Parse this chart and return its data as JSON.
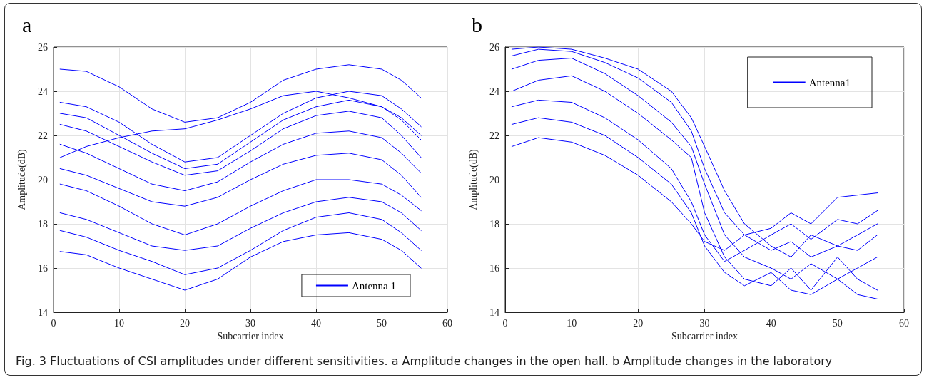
{
  "chart_data": [
    {
      "type": "line",
      "title": "a",
      "xlabel": "Subcarrier index",
      "ylabel": "Amplitude(dB)",
      "x": [
        1,
        5,
        10,
        15,
        20,
        25,
        30,
        35,
        40,
        45,
        50,
        53,
        56
      ],
      "xlim": [
        0,
        60
      ],
      "xticks": [
        0,
        10,
        20,
        30,
        40,
        50,
        60
      ],
      "ylim": [
        14,
        26
      ],
      "yticks": [
        14,
        16,
        18,
        20,
        22,
        24,
        26
      ],
      "grid": true,
      "legend": "bottom right",
      "line_style": "solid",
      "annotations": [
        "Fig. 3 Fluctuations of CSI amplitudes under different sensitivities. a Amplitude changes in the open hall. b Amplitude changes in the laboratory"
      ],
      "series": [
        {
          "name": "Antenna 1",
          "color": "#0000ff",
          "values": [
            25.0,
            24.9,
            24.2,
            23.2,
            22.6,
            22.8,
            23.5,
            24.5,
            25.0,
            25.2,
            25.0,
            24.5,
            23.7
          ]
        },
        {
          "color": "#0000ff",
          "values": [
            23.5,
            23.3,
            22.6,
            21.6,
            20.8,
            21.0,
            22.0,
            23.0,
            23.7,
            24.0,
            23.8,
            23.2,
            22.4
          ]
        },
        {
          "color": "#0000ff",
          "values": [
            23.0,
            22.8,
            22.0,
            21.2,
            20.5,
            20.7,
            21.7,
            22.7,
            23.3,
            23.6,
            23.3,
            22.7,
            21.8
          ]
        },
        {
          "color": "#0000ff",
          "values": [
            22.5,
            22.2,
            21.5,
            20.8,
            20.2,
            20.4,
            21.3,
            22.3,
            22.9,
            23.1,
            22.8,
            22.0,
            21.0
          ]
        },
        {
          "color": "#0000ff",
          "values": [
            21.0,
            21.5,
            21.9,
            22.2,
            22.3,
            22.7,
            23.2,
            23.8,
            24.0,
            23.7,
            23.3,
            22.8,
            22.0
          ]
        },
        {
          "color": "#0000ff",
          "values": [
            21.6,
            21.2,
            20.5,
            19.8,
            19.5,
            19.9,
            20.8,
            21.6,
            22.1,
            22.2,
            21.9,
            21.2,
            20.3
          ]
        },
        {
          "color": "#0000ff",
          "values": [
            20.5,
            20.2,
            19.6,
            19.0,
            18.8,
            19.2,
            20.0,
            20.7,
            21.1,
            21.2,
            20.9,
            20.2,
            19.2
          ]
        },
        {
          "color": "#0000ff",
          "values": [
            19.8,
            19.5,
            18.8,
            18.0,
            17.5,
            18.0,
            18.8,
            19.5,
            20.0,
            20.0,
            19.8,
            19.3,
            18.6
          ]
        },
        {
          "color": "#0000ff",
          "values": [
            18.5,
            18.2,
            17.6,
            17.0,
            16.8,
            17.0,
            17.8,
            18.5,
            19.0,
            19.2,
            19.0,
            18.5,
            17.7
          ]
        },
        {
          "color": "#0000ff",
          "values": [
            17.7,
            17.4,
            16.8,
            16.3,
            15.7,
            16.0,
            16.8,
            17.7,
            18.3,
            18.5,
            18.2,
            17.6,
            16.8
          ]
        },
        {
          "color": "#0000ff",
          "values": [
            16.75,
            16.6,
            16.0,
            15.5,
            15.0,
            15.5,
            16.5,
            17.2,
            17.5,
            17.6,
            17.3,
            16.8,
            16.0
          ]
        }
      ]
    },
    {
      "type": "line",
      "title": "b",
      "xlabel": "Subcarrier index",
      "ylabel": "Amplitude(dB)",
      "x": [
        1,
        5,
        10,
        15,
        20,
        25,
        28,
        30,
        33,
        36,
        40,
        43,
        46,
        50,
        53,
        56
      ],
      "xlim": [
        0,
        60
      ],
      "xticks": [
        0,
        10,
        20,
        30,
        40,
        50,
        60
      ],
      "ylim": [
        14,
        26
      ],
      "yticks": [
        14,
        16,
        18,
        20,
        22,
        24,
        26
      ],
      "grid": true,
      "legend": "top right",
      "line_style": "solid",
      "series": [
        {
          "name": "Antenna1",
          "color": "#0000ff",
          "values": [
            25.6,
            25.9,
            25.8,
            25.3,
            24.6,
            23.5,
            22.2,
            20.5,
            18.5,
            17.5,
            16.8,
            17.2,
            16.5,
            17.0,
            16.8,
            17.5
          ]
        },
        {
          "color": "#0000ff",
          "values": [
            25.0,
            25.4,
            25.5,
            24.8,
            23.8,
            22.6,
            21.5,
            19.8,
            17.5,
            16.5,
            16.0,
            15.5,
            16.2,
            15.5,
            16.0,
            16.5
          ]
        },
        {
          "color": "#0000ff",
          "values": [
            24.0,
            24.5,
            24.7,
            24.0,
            23.0,
            21.8,
            21.0,
            18.5,
            16.5,
            15.5,
            15.2,
            16.0,
            15.0,
            16.5,
            15.5,
            15.0
          ]
        },
        {
          "color": "#0000ff",
          "values": [
            23.3,
            23.6,
            23.5,
            22.8,
            21.8,
            20.5,
            19.0,
            17.5,
            16.3,
            16.8,
            17.5,
            18.0,
            17.3,
            18.2,
            18.0,
            18.6
          ]
        },
        {
          "color": "#0000ff",
          "values": [
            22.5,
            22.8,
            22.6,
            22.0,
            21.0,
            19.8,
            18.5,
            17.0,
            15.8,
            15.2,
            15.8,
            15.0,
            14.8,
            15.5,
            14.8,
            14.6
          ]
        },
        {
          "color": "#0000ff",
          "values": [
            21.5,
            21.9,
            21.7,
            21.1,
            20.2,
            19.0,
            18.0,
            17.2,
            16.8,
            17.5,
            17.8,
            18.5,
            18.0,
            19.2,
            19.3,
            19.4
          ]
        },
        {
          "color": "#0000ff",
          "values": [
            25.9,
            26.0,
            25.9,
            25.5,
            25.0,
            24.0,
            22.8,
            21.5,
            19.5,
            18.0,
            17.0,
            16.5,
            17.5,
            17.0,
            17.5,
            18.0
          ]
        }
      ]
    }
  ]
}
